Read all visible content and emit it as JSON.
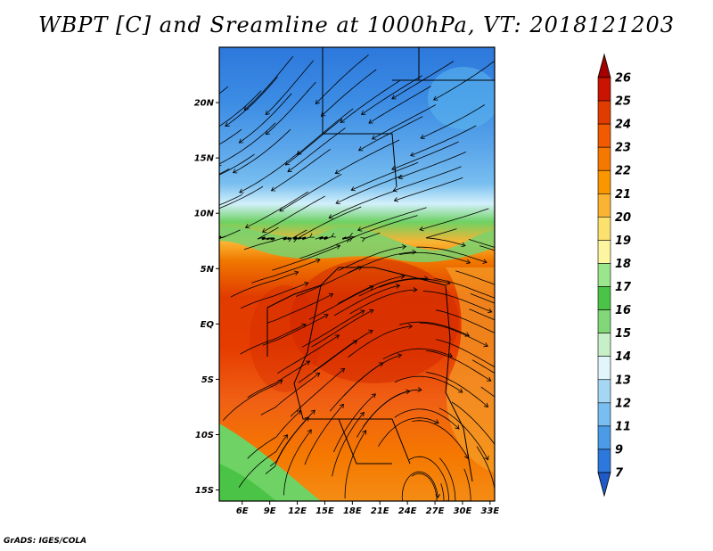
{
  "title": "WBPT [C] and Sreamline at 1000hPa, VT: 2018121203",
  "footer": "GrADS: IGES/COLA",
  "map": {
    "lat_range": [
      -16,
      25
    ],
    "lon_range": [
      3.5,
      33.5
    ],
    "lat_ticks": [
      {
        "value": 20,
        "label": "20N"
      },
      {
        "value": 15,
        "label": "15N"
      },
      {
        "value": 10,
        "label": "10N"
      },
      {
        "value": 5,
        "label": "5N"
      },
      {
        "value": 0,
        "label": "EQ"
      },
      {
        "value": -5,
        "label": "5S"
      },
      {
        "value": -10,
        "label": "10S"
      },
      {
        "value": -15,
        "label": "15S"
      }
    ],
    "lon_ticks": [
      {
        "value": 6,
        "label": "6E"
      },
      {
        "value": 9,
        "label": "9E"
      },
      {
        "value": 12,
        "label": "12E"
      },
      {
        "value": 15,
        "label": "15E"
      },
      {
        "value": 18,
        "label": "18E"
      },
      {
        "value": 21,
        "label": "21E"
      },
      {
        "value": 24,
        "label": "24E"
      },
      {
        "value": 27,
        "label": "27E"
      },
      {
        "value": 30,
        "label": "30E"
      },
      {
        "value": 33,
        "label": "33E"
      }
    ]
  },
  "colorbar": {
    "labels": [
      "26",
      "25",
      "24",
      "23",
      "22",
      "21",
      "20",
      "19",
      "18",
      "17",
      "16",
      "15",
      "14",
      "13",
      "12",
      "11",
      "9",
      "7"
    ],
    "colors": [
      "#a50000",
      "#c81400",
      "#e13c00",
      "#f05a00",
      "#f57800",
      "#fa9600",
      "#fbb432",
      "#fde16e",
      "#fdf5a0",
      "#9be68c",
      "#4bc346",
      "#82d778",
      "#c8f0c8",
      "#e1f5fa",
      "#a5d7f5",
      "#78bef0",
      "#4b9be6",
      "#2d78dc",
      "#1e5ac8"
    ]
  }
}
